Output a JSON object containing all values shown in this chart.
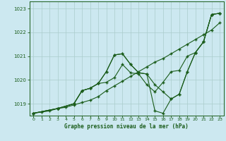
{
  "title": "Graphe pression niveau de la mer (hPa)",
  "bg_color": "#cce8f0",
  "grid_color": "#aacccc",
  "line_color": "#1a5c1a",
  "xlim": [
    -0.5,
    23.5
  ],
  "ylim": [
    1018.5,
    1023.3
  ],
  "yticks": [
    1019,
    1020,
    1021,
    1022,
    1023
  ],
  "xticks": [
    0,
    1,
    2,
    3,
    4,
    5,
    6,
    7,
    8,
    9,
    10,
    11,
    12,
    13,
    14,
    15,
    16,
    17,
    18,
    19,
    20,
    21,
    22,
    23
  ],
  "line1_x": [
    0,
    1,
    2,
    3,
    4,
    5,
    6,
    7,
    8,
    9,
    10,
    11,
    12,
    13,
    14,
    15,
    16,
    17,
    18,
    19,
    20,
    21,
    22,
    23
  ],
  "line1_y": [
    1018.6,
    1018.65,
    1018.7,
    1018.8,
    1018.85,
    1018.95,
    1019.05,
    1019.15,
    1019.3,
    1019.55,
    1019.75,
    1019.95,
    1020.15,
    1020.35,
    1020.55,
    1020.75,
    1020.9,
    1021.1,
    1021.3,
    1021.5,
    1021.7,
    1021.9,
    1022.1,
    1022.4
  ],
  "line2_x": [
    0,
    3,
    5,
    6,
    7,
    8,
    9,
    10,
    11,
    12,
    13,
    14,
    15,
    16,
    17,
    18,
    19,
    20,
    21,
    22,
    23
  ],
  "line2_y": [
    1018.6,
    1018.8,
    1019.0,
    1019.55,
    1019.65,
    1019.85,
    1020.35,
    1021.05,
    1021.1,
    1020.65,
    1020.3,
    1020.25,
    1019.8,
    1019.5,
    1019.2,
    1019.4,
    1020.35,
    1021.15,
    1021.6,
    1022.75,
    1022.8
  ],
  "line3_x": [
    0,
    3,
    5,
    6,
    7,
    8,
    9,
    10,
    11,
    12,
    13,
    14,
    15,
    16,
    17,
    18,
    19,
    20,
    21,
    22,
    23
  ],
  "line3_y": [
    1018.6,
    1018.8,
    1019.0,
    1019.55,
    1019.65,
    1019.85,
    1020.35,
    1021.05,
    1021.1,
    1020.65,
    1020.3,
    1020.25,
    1018.7,
    1018.6,
    1019.2,
    1019.4,
    1020.35,
    1021.15,
    1021.6,
    1022.75,
    1022.8
  ],
  "line4_x": [
    0,
    3,
    5,
    6,
    7,
    8,
    9,
    10,
    11,
    12,
    13,
    14,
    15,
    16,
    17,
    18,
    19,
    20,
    21,
    22,
    23
  ],
  "line4_y": [
    1018.6,
    1018.8,
    1019.0,
    1019.55,
    1019.65,
    1019.85,
    1019.9,
    1020.1,
    1020.65,
    1020.3,
    1020.25,
    1019.8,
    1019.5,
    1019.9,
    1020.35,
    1020.4,
    1021.0,
    1021.15,
    1021.6,
    1022.75,
    1022.8
  ]
}
